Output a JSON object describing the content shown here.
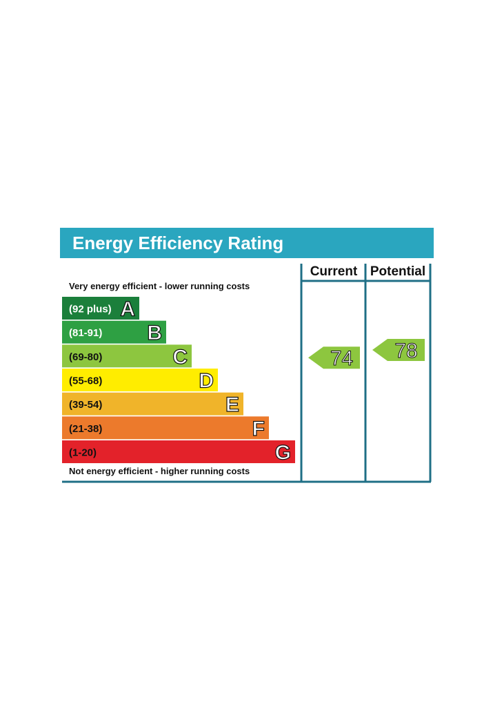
{
  "chart_data": {
    "type": "bar",
    "title": "Energy Efficiency Rating",
    "top_caption": "Very energy efficient - lower running costs",
    "bottom_caption": "Not energy efficient - higher running costs",
    "columns": {
      "current": "Current",
      "potential": "Potential"
    },
    "bands": [
      {
        "letter": "A",
        "range": "(92 plus)",
        "min": 92,
        "max": 100,
        "color": "#1b7f3b",
        "dark_text": false
      },
      {
        "letter": "B",
        "range": "(81-91)",
        "min": 81,
        "max": 91,
        "color": "#2ea043",
        "dark_text": false
      },
      {
        "letter": "C",
        "range": "(69-80)",
        "min": 69,
        "max": 80,
        "color": "#8dc63f",
        "dark_text": true
      },
      {
        "letter": "D",
        "range": "(55-68)",
        "min": 55,
        "max": 68,
        "color": "#ffed00",
        "dark_text": true
      },
      {
        "letter": "E",
        "range": "(39-54)",
        "min": 39,
        "max": 54,
        "color": "#f0b42a",
        "dark_text": true
      },
      {
        "letter": "F",
        "range": "(21-38)",
        "min": 21,
        "max": 38,
        "color": "#ec7a2c",
        "dark_text": true
      },
      {
        "letter": "G",
        "range": "(1-20)",
        "min": 1,
        "max": 20,
        "color": "#e3222a",
        "dark_text": true
      }
    ],
    "current": {
      "value": 74,
      "band": "C"
    },
    "potential": {
      "value": 78,
      "band": "C"
    },
    "colors": {
      "header": "#2aa6bf",
      "frame": "#1f6f86",
      "arrow": "#8dc63f"
    }
  }
}
